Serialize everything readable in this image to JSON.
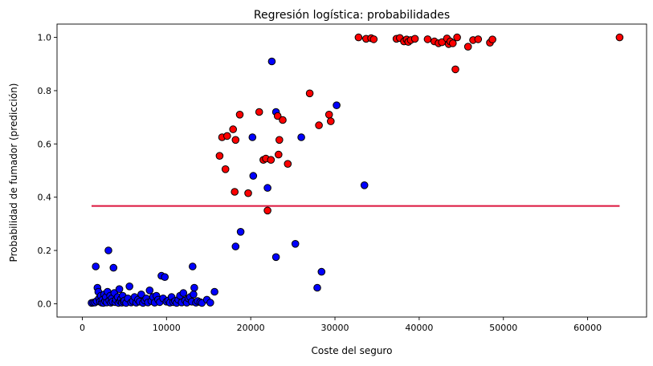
{
  "chart_data": {
    "type": "scatter",
    "title": "Regresión logística: probabilidades",
    "xlabel": "Coste del seguro",
    "ylabel": "Probabilidad de fumador (predicción)",
    "xlim": [
      -3000,
      67000
    ],
    "ylim": [
      -0.05,
      1.05
    ],
    "xticks": [
      0,
      10000,
      20000,
      30000,
      40000,
      50000,
      60000
    ],
    "yticks": [
      0.0,
      0.2,
      0.4,
      0.6,
      0.8,
      1.0
    ],
    "xtick_labels": [
      "0",
      "10000",
      "20000",
      "30000",
      "40000",
      "50000",
      "60000"
    ],
    "ytick_labels": [
      "0.0",
      "0.2",
      "0.4",
      "0.6",
      "0.8",
      "1.0"
    ],
    "grid": false,
    "colors": {
      "blue": "#0000ff",
      "red": "#ff0000",
      "line": "#dc143c",
      "edge": "#000000"
    },
    "threshold_line": {
      "x": [
        1100,
        63800
      ],
      "y": 0.367
    },
    "series": [
      {
        "color": "blue",
        "points": [
          [
            1100,
            0.003
          ],
          [
            1300,
            0.004
          ],
          [
            1500,
            0.005
          ],
          [
            1600,
            0.14
          ],
          [
            1700,
            0.01
          ],
          [
            1800,
            0.06
          ],
          [
            1900,
            0.045
          ],
          [
            2000,
            0.02
          ],
          [
            2100,
            0.008
          ],
          [
            2200,
            0.03
          ],
          [
            2300,
            0.004
          ],
          [
            2400,
            0.015
          ],
          [
            2500,
            0.003
          ],
          [
            2600,
            0.035
          ],
          [
            2700,
            0.01
          ],
          [
            2800,
            0.025
          ],
          [
            2900,
            0.005
          ],
          [
            3000,
            0.045
          ],
          [
            3100,
            0.2
          ],
          [
            3200,
            0.012
          ],
          [
            3300,
            0.03
          ],
          [
            3400,
            0.004
          ],
          [
            3500,
            0.02
          ],
          [
            3600,
            0.008
          ],
          [
            3700,
            0.135
          ],
          [
            3800,
            0.04
          ],
          [
            3900,
            0.006
          ],
          [
            4000,
            0.015
          ],
          [
            4200,
            0.025
          ],
          [
            4300,
            0.003
          ],
          [
            4400,
            0.055
          ],
          [
            4500,
            0.01
          ],
          [
            4600,
            0.018
          ],
          [
            4700,
            0.004
          ],
          [
            4800,
            0.03
          ],
          [
            4900,
            0.008
          ],
          [
            5000,
            0.012
          ],
          [
            5200,
            0.003
          ],
          [
            5400,
            0.02
          ],
          [
            5600,
            0.065
          ],
          [
            5800,
            0.005
          ],
          [
            6000,
            0.01
          ],
          [
            6200,
            0.025
          ],
          [
            6400,
            0.004
          ],
          [
            6600,
            0.015
          ],
          [
            6800,
            0.008
          ],
          [
            7000,
            0.035
          ],
          [
            7200,
            0.003
          ],
          [
            7400,
            0.012
          ],
          [
            7600,
            0.02
          ],
          [
            7800,
            0.005
          ],
          [
            8000,
            0.05
          ],
          [
            8200,
            0.01
          ],
          [
            8400,
            0.025
          ],
          [
            8600,
            0.004
          ],
          [
            8800,
            0.03
          ],
          [
            9000,
            0.015
          ],
          [
            9200,
            0.006
          ],
          [
            9400,
            0.105
          ],
          [
            9600,
            0.02
          ],
          [
            9800,
            0.1
          ],
          [
            10000,
            0.008
          ],
          [
            10200,
            0.012
          ],
          [
            10400,
            0.004
          ],
          [
            10600,
            0.025
          ],
          [
            10800,
            0.006
          ],
          [
            11000,
            0.01
          ],
          [
            11200,
            0.003
          ],
          [
            11400,
            0.015
          ],
          [
            11600,
            0.03
          ],
          [
            11800,
            0.005
          ],
          [
            12000,
            0.04
          ],
          [
            12200,
            0.012
          ],
          [
            12400,
            0.004
          ],
          [
            12600,
            0.02
          ],
          [
            12800,
            0.025
          ],
          [
            13000,
            0.008
          ],
          [
            13100,
            0.14
          ],
          [
            13200,
            0.035
          ],
          [
            13300,
            0.06
          ],
          [
            13500,
            0.004
          ],
          [
            13700,
            0.01
          ],
          [
            14000,
            0.006
          ],
          [
            14200,
            0.003
          ],
          [
            14800,
            0.015
          ],
          [
            15200,
            0.004
          ],
          [
            15700,
            0.045
          ],
          [
            18200,
            0.215
          ],
          [
            18800,
            0.27
          ],
          [
            20200,
            0.625
          ],
          [
            20300,
            0.48
          ],
          [
            22000,
            0.435
          ],
          [
            22500,
            0.91
          ],
          [
            23000,
            0.72
          ],
          [
            23000,
            0.175
          ],
          [
            25300,
            0.225
          ],
          [
            26000,
            0.625
          ],
          [
            27900,
            0.06
          ],
          [
            28400,
            0.12
          ],
          [
            30200,
            0.745
          ],
          [
            33500,
            0.445
          ]
        ]
      },
      {
        "color": "red",
        "points": [
          [
            16300,
            0.555
          ],
          [
            16600,
            0.625
          ],
          [
            17000,
            0.505
          ],
          [
            17200,
            0.63
          ],
          [
            17900,
            0.655
          ],
          [
            18100,
            0.42
          ],
          [
            18200,
            0.615
          ],
          [
            18700,
            0.71
          ],
          [
            19700,
            0.415
          ],
          [
            21000,
            0.72
          ],
          [
            21500,
            0.54
          ],
          [
            21800,
            0.545
          ],
          [
            22000,
            0.35
          ],
          [
            22400,
            0.54
          ],
          [
            23200,
            0.705
          ],
          [
            23300,
            0.56
          ],
          [
            23400,
            0.615
          ],
          [
            23800,
            0.69
          ],
          [
            24400,
            0.525
          ],
          [
            27000,
            0.79
          ],
          [
            28100,
            0.67
          ],
          [
            29300,
            0.71
          ],
          [
            29500,
            0.685
          ],
          [
            32800,
            1.0
          ],
          [
            33700,
            0.995
          ],
          [
            34300,
            0.997
          ],
          [
            34600,
            0.993
          ],
          [
            37300,
            0.995
          ],
          [
            37700,
            0.998
          ],
          [
            38200,
            0.985
          ],
          [
            38500,
            0.992
          ],
          [
            38700,
            0.983
          ],
          [
            39000,
            0.99
          ],
          [
            39500,
            0.995
          ],
          [
            41000,
            0.993
          ],
          [
            41800,
            0.985
          ],
          [
            42300,
            0.978
          ],
          [
            42700,
            0.982
          ],
          [
            43300,
            0.996
          ],
          [
            43500,
            0.975
          ],
          [
            43700,
            0.985
          ],
          [
            44000,
            0.978
          ],
          [
            44300,
            0.88
          ],
          [
            44500,
            1.0
          ],
          [
            45800,
            0.965
          ],
          [
            46400,
            0.99
          ],
          [
            47000,
            0.993
          ],
          [
            48400,
            0.98
          ],
          [
            48700,
            0.992
          ],
          [
            63800,
            1.0
          ]
        ]
      }
    ]
  }
}
